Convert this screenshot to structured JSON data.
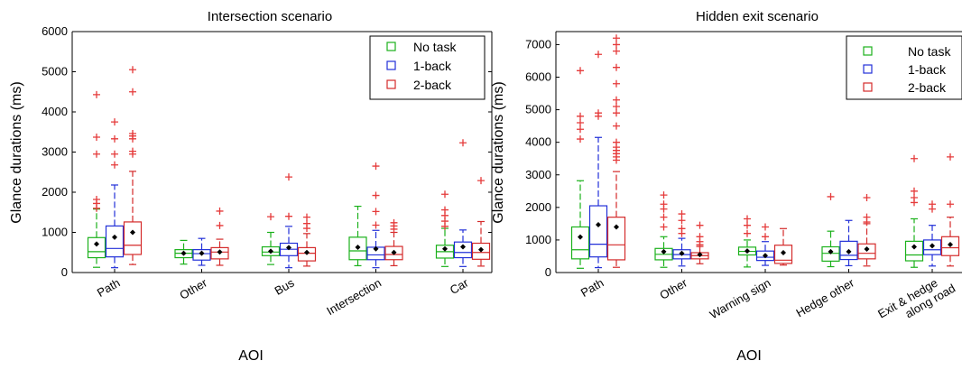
{
  "chart_data": [
    {
      "type": "box",
      "title": "Intersection scenario",
      "xlabel": "AOI",
      "ylabel": "Glance durations (ms)",
      "ylim": [
        0,
        6000
      ],
      "yticks": [
        "0",
        "1000",
        "2000",
        "3000",
        "4000",
        "5000",
        "6000"
      ],
      "legend_position": "top-right",
      "categories": [
        "Path",
        "Other",
        "Bus",
        "Intersection",
        "Car"
      ],
      "series": [
        {
          "name": "No task",
          "color": "#1bb11b",
          "boxes": [
            {
              "whisker_low": 130,
              "q1": 370,
              "median": 520,
              "q3": 870,
              "whisker_high": 1580,
              "mean": 710,
              "outliers": [
                1600,
                1720,
                1820,
                2950,
                3370,
                4430
              ]
            },
            {
              "whisker_low": 210,
              "q1": 370,
              "median": 480,
              "q3": 570,
              "whisker_high": 800,
              "mean": 480,
              "outliers": []
            },
            {
              "whisker_low": 200,
              "q1": 420,
              "median": 510,
              "q3": 640,
              "whisker_high": 1000,
              "mean": 530,
              "outliers": [
                1390
              ]
            },
            {
              "whisker_low": 170,
              "q1": 320,
              "median": 540,
              "q3": 880,
              "whisker_high": 1650,
              "mean": 630,
              "outliers": []
            },
            {
              "whisker_low": 150,
              "q1": 360,
              "median": 520,
              "q3": 680,
              "whisker_high": 1100,
              "mean": 590,
              "outliers": [
                1150,
                1280,
                1420,
                1560,
                1950
              ]
            }
          ]
        },
        {
          "name": "1-back",
          "color": "#2230d8",
          "boxes": [
            {
              "whisker_low": 120,
              "q1": 390,
              "median": 600,
              "q3": 1160,
              "whisker_high": 2180,
              "mean": 880,
              "outliers": [
                2680,
                2950,
                3330,
                3750
              ]
            },
            {
              "whisker_low": 180,
              "q1": 310,
              "median": 470,
              "q3": 570,
              "whisker_high": 850,
              "mean": 480,
              "outliers": []
            },
            {
              "whisker_low": 120,
              "q1": 420,
              "median": 580,
              "q3": 730,
              "whisker_high": 1150,
              "mean": 620,
              "outliers": [
                1400,
                2380
              ]
            },
            {
              "whisker_low": 120,
              "q1": 320,
              "median": 440,
              "q3": 630,
              "whisker_high": 1050,
              "mean": 590,
              "outliers": [
                1180,
                1520,
                1920,
                2650
              ]
            },
            {
              "whisker_low": 150,
              "q1": 370,
              "median": 500,
              "q3": 760,
              "whisker_high": 1060,
              "mean": 640,
              "outliers": [
                3230
              ]
            }
          ]
        },
        {
          "name": "2-back",
          "color": "#d42a2a",
          "boxes": [
            {
              "whisker_low": 200,
              "q1": 450,
              "median": 680,
              "q3": 1260,
              "whisker_high": 2520,
              "mean": 1000,
              "outliers": [
                2950,
                3020,
                3330,
                3400,
                3460,
                4500,
                5050
              ]
            },
            {
              "whisker_low": 180,
              "q1": 340,
              "median": 510,
              "q3": 620,
              "whisker_high": 830,
              "mean": 510,
              "outliers": [
                1170,
                1530
              ]
            },
            {
              "whisker_low": 160,
              "q1": 290,
              "median": 480,
              "q3": 620,
              "whisker_high": 970,
              "mean": 500,
              "outliers": [
                1100,
                1220,
                1380
              ]
            },
            {
              "whisker_low": 170,
              "q1": 320,
              "median": 450,
              "q3": 650,
              "whisker_high": 1000,
              "mean": 500,
              "outliers": [
                1080,
                1160,
                1240
              ]
            },
            {
              "whisker_low": 160,
              "q1": 330,
              "median": 500,
              "q3": 730,
              "whisker_high": 1270,
              "mean": 570,
              "outliers": [
                2290
              ]
            }
          ]
        }
      ]
    },
    {
      "type": "box",
      "title": "Hidden exit scenario",
      "xlabel": "AOI",
      "ylabel": "Glance durations (ms)",
      "ylim": [
        0,
        7400
      ],
      "yticks": [
        "0",
        "1000",
        "2000",
        "3000",
        "4000",
        "5000",
        "6000",
        "7000"
      ],
      "legend_position": "top-right",
      "categories": [
        "Path",
        "Other",
        "Warning sign",
        "Hedge other",
        "Exit & hedge\nalong road"
      ],
      "series": [
        {
          "name": "No task",
          "color": "#1bb11b",
          "boxes": [
            {
              "whisker_low": 130,
              "q1": 420,
              "median": 700,
              "q3": 1400,
              "whisker_high": 2820,
              "mean": 1090,
              "outliers": [
                4100,
                4400,
                4600,
                4800,
                6200
              ]
            },
            {
              "whisker_low": 160,
              "q1": 390,
              "median": 560,
              "q3": 740,
              "whisker_high": 1100,
              "mean": 640,
              "outliers": [
                1400,
                1700,
                1950,
                2100,
                2380
              ]
            },
            {
              "whisker_low": 170,
              "q1": 540,
              "median": 650,
              "q3": 780,
              "whisker_high": 1000,
              "mean": 660,
              "outliers": [
                1200,
                1450,
                1650
              ]
            },
            {
              "whisker_low": 180,
              "q1": 350,
              "median": 590,
              "q3": 790,
              "whisker_high": 1270,
              "mean": 640,
              "outliers": [
                2330
              ]
            },
            {
              "whisker_low": 160,
              "q1": 360,
              "median": 540,
              "q3": 960,
              "whisker_high": 1650,
              "mean": 790,
              "outliers": [
                2150,
                2300,
                2500,
                3500
              ]
            }
          ]
        },
        {
          "name": "1-back",
          "color": "#2230d8",
          "boxes": [
            {
              "whisker_low": 150,
              "q1": 480,
              "median": 870,
              "q3": 2050,
              "whisker_high": 4150,
              "mean": 1470,
              "outliers": [
                4800,
                4900,
                6700
              ]
            },
            {
              "whisker_low": 200,
              "q1": 420,
              "median": 550,
              "q3": 700,
              "whisker_high": 1050,
              "mean": 590,
              "outliers": [
                1200,
                1350,
                1600,
                1800
              ]
            },
            {
              "whisker_low": 220,
              "q1": 370,
              "median": 470,
              "q3": 660,
              "whisker_high": 950,
              "mean": 520,
              "outliers": [
                1100,
                1400
              ]
            },
            {
              "whisker_low": 210,
              "q1": 400,
              "median": 530,
              "q3": 960,
              "whisker_high": 1600,
              "mean": 640,
              "outliers": []
            },
            {
              "whisker_low": 200,
              "q1": 550,
              "median": 700,
              "q3": 1000,
              "whisker_high": 1450,
              "mean": 820,
              "outliers": [
                1950,
                2100
              ]
            }
          ]
        },
        {
          "name": "2-back",
          "color": "#d42a2a",
          "boxes": [
            {
              "whisker_low": 160,
              "q1": 390,
              "median": 850,
              "q3": 1700,
              "whisker_high": 3100,
              "mean": 1400,
              "outliers": [
                3450,
                3550,
                3650,
                3750,
                3850,
                4000,
                4500,
                4900,
                5100,
                5300,
                5800,
                6300,
                6800,
                7000,
                7200
              ]
            },
            {
              "whisker_low": 270,
              "q1": 420,
              "median": 520,
              "q3": 610,
              "whisker_high": 800,
              "mean": 550,
              "outliers": [
                850,
                950,
                1100,
                1450
              ]
            },
            {
              "whisker_low": 230,
              "q1": 280,
              "median": 380,
              "q3": 840,
              "whisker_high": 1350,
              "mean": 610,
              "outliers": []
            },
            {
              "whisker_low": 200,
              "q1": 420,
              "median": 590,
              "q3": 880,
              "whisker_high": 1500,
              "mean": 720,
              "outliers": [
                1550,
                1700,
                2300
              ]
            },
            {
              "whisker_low": 200,
              "q1": 520,
              "median": 760,
              "q3": 1100,
              "whisker_high": 1700,
              "mean": 860,
              "outliers": [
                2100,
                3550
              ]
            }
          ]
        }
      ]
    }
  ]
}
